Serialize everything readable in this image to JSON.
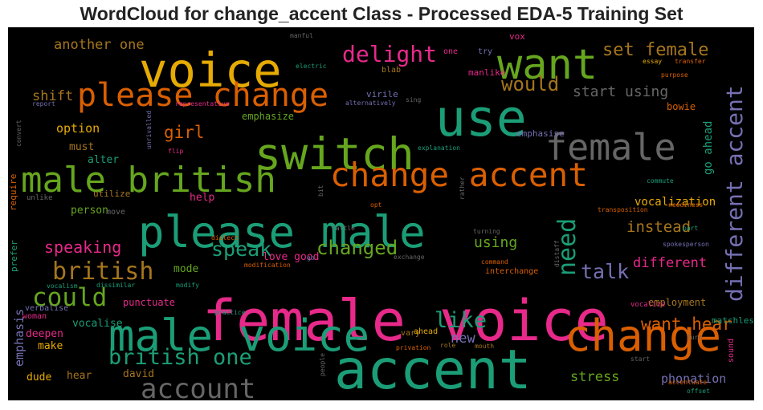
{
  "chart_data": {
    "type": "wordcloud",
    "title": "WordCloud for change_accent Class - Processed EDA-5 Training Set",
    "background": "#000000",
    "palette": {
      "g": "#1b9e77",
      "o": "#d95f02",
      "p": "#7570b3",
      "m": "#e7298a",
      "l": "#66a61e",
      "y": "#e6ab02",
      "b": "#a6761d",
      "d": "#666666"
    },
    "words": [
      {
        "text": "female voice",
        "c": "m"
      },
      {
        "text": "accent",
        "c": "g"
      },
      {
        "text": "please male",
        "c": "g"
      },
      {
        "text": "male voice",
        "c": "g"
      },
      {
        "text": "change",
        "c": "o"
      },
      {
        "text": "male british",
        "c": "l"
      },
      {
        "text": "switch",
        "c": "l"
      },
      {
        "text": "change accent",
        "c": "o"
      },
      {
        "text": "voice",
        "c": "y"
      },
      {
        "text": "use",
        "c": "g"
      },
      {
        "text": "female",
        "c": "d"
      },
      {
        "text": "want",
        "c": "l"
      },
      {
        "text": "please change",
        "c": "o"
      },
      {
        "text": "different accent",
        "c": "p"
      },
      {
        "text": "account",
        "c": "d"
      },
      {
        "text": "british",
        "c": "b"
      },
      {
        "text": "could",
        "c": "l"
      },
      {
        "text": "british one",
        "c": "g"
      },
      {
        "text": "need",
        "c": "g"
      },
      {
        "text": "delight",
        "c": "m"
      },
      {
        "text": "like",
        "c": "g"
      },
      {
        "text": "talk",
        "c": "p"
      },
      {
        "text": "speak",
        "c": "g"
      },
      {
        "text": "changed",
        "c": "l"
      },
      {
        "text": "would",
        "c": "b"
      },
      {
        "text": "set female",
        "c": "b"
      },
      {
        "text": "want hear",
        "c": "o"
      },
      {
        "text": "girl",
        "c": "o"
      },
      {
        "text": "speaking",
        "c": "m"
      },
      {
        "text": "instead",
        "c": "b"
      },
      {
        "text": "start using",
        "c": "d"
      },
      {
        "text": "using",
        "c": "l"
      },
      {
        "text": "different",
        "c": "m"
      },
      {
        "text": "shift",
        "c": "b"
      },
      {
        "text": "another one",
        "c": "b"
      },
      {
        "text": "new",
        "c": "p"
      },
      {
        "text": "stress",
        "c": "l"
      },
      {
        "text": "phonation",
        "c": "p"
      },
      {
        "text": "go ahead",
        "c": "g"
      },
      {
        "text": "vocalization",
        "c": "y"
      },
      {
        "text": "option",
        "c": "y"
      },
      {
        "text": "emphasis",
        "c": "p"
      },
      {
        "text": "david",
        "c": "b"
      },
      {
        "text": "love good",
        "c": "m"
      },
      {
        "text": "help",
        "c": "m"
      },
      {
        "text": "must",
        "c": "b"
      },
      {
        "text": "alter",
        "c": "g"
      },
      {
        "text": "person",
        "c": "l"
      },
      {
        "text": "mode",
        "c": "l"
      },
      {
        "text": "hear",
        "c": "b"
      },
      {
        "text": "make",
        "c": "y"
      },
      {
        "text": "dude",
        "c": "y"
      },
      {
        "text": "deepen",
        "c": "m"
      },
      {
        "text": "vocalise",
        "c": "g"
      },
      {
        "text": "punctuate",
        "c": "m"
      },
      {
        "text": "employment",
        "c": "b"
      },
      {
        "text": "matchless",
        "c": "g"
      },
      {
        "text": "virile",
        "c": "p"
      },
      {
        "text": "emphasise",
        "c": "p"
      },
      {
        "text": "emphasize",
        "c": "l"
      },
      {
        "text": "manlike",
        "c": "m"
      },
      {
        "text": "bowie",
        "c": "o"
      },
      {
        "text": "vox",
        "c": "m"
      },
      {
        "text": "utilize",
        "c": "b"
      },
      {
        "text": "require",
        "c": "o"
      },
      {
        "text": "prefer",
        "c": "g"
      },
      {
        "text": "woman",
        "c": "m"
      },
      {
        "text": "vary",
        "c": "b"
      },
      {
        "text": "ahead",
        "c": "y"
      },
      {
        "text": "try",
        "c": "p"
      },
      {
        "text": "one",
        "c": "m"
      },
      {
        "text": "blab",
        "c": "b"
      },
      {
        "text": "sound",
        "c": "m"
      },
      {
        "text": "interchange",
        "c": "o"
      },
      {
        "text": "move",
        "c": "d"
      },
      {
        "text": "unlike",
        "c": "d"
      },
      {
        "text": "verbalise",
        "c": "p"
      },
      {
        "text": "vocalize",
        "c": "m"
      },
      {
        "text": "essay",
        "c": "y"
      },
      {
        "text": "transfer",
        "c": "o"
      },
      {
        "text": "purpose",
        "c": "o"
      },
      {
        "text": "manful",
        "c": "d"
      },
      {
        "text": "electric",
        "c": "g"
      },
      {
        "text": "sing",
        "c": "d"
      },
      {
        "text": "report",
        "c": "p"
      },
      {
        "text": "representative",
        "c": "m"
      },
      {
        "text": "alternatively",
        "c": "p"
      },
      {
        "text": "explanation",
        "c": "g"
      },
      {
        "text": "convert",
        "c": "d"
      },
      {
        "text": "unrivalled",
        "c": "p"
      },
      {
        "text": "flip",
        "c": "m"
      },
      {
        "text": "commute",
        "c": "g"
      },
      {
        "text": "opt",
        "c": "o"
      },
      {
        "text": "rather",
        "c": "d"
      },
      {
        "text": "tattle",
        "c": "d"
      },
      {
        "text": "turning",
        "c": "d"
      },
      {
        "text": "transposition",
        "c": "o"
      },
      {
        "text": "neediness",
        "c": "o"
      },
      {
        "text": "part",
        "c": "g"
      },
      {
        "text": "spokesperson",
        "c": "p"
      },
      {
        "text": "dialect",
        "c": "o"
      },
      {
        "text": "vocalism",
        "c": "g"
      },
      {
        "text": "modification",
        "c": "o"
      },
      {
        "text": "go",
        "c": "p"
      },
      {
        "text": "exchange",
        "c": "d"
      },
      {
        "text": "command",
        "c": "o"
      },
      {
        "text": "distaff",
        "c": "d"
      },
      {
        "text": "dissimilar",
        "c": "g"
      },
      {
        "text": "modify",
        "c": "g"
      },
      {
        "text": "practice",
        "c": "g"
      },
      {
        "text": "privation",
        "c": "o"
      },
      {
        "text": "role",
        "c": "b"
      },
      {
        "text": "mouth",
        "c": "b"
      },
      {
        "text": "people",
        "c": "d"
      },
      {
        "text": "start",
        "c": "d"
      },
      {
        "text": "turn",
        "c": "d"
      },
      {
        "text": "accentuate",
        "c": "o"
      },
      {
        "text": "offset",
        "c": "g"
      },
      {
        "text": "bit",
        "c": "d"
      }
    ]
  }
}
